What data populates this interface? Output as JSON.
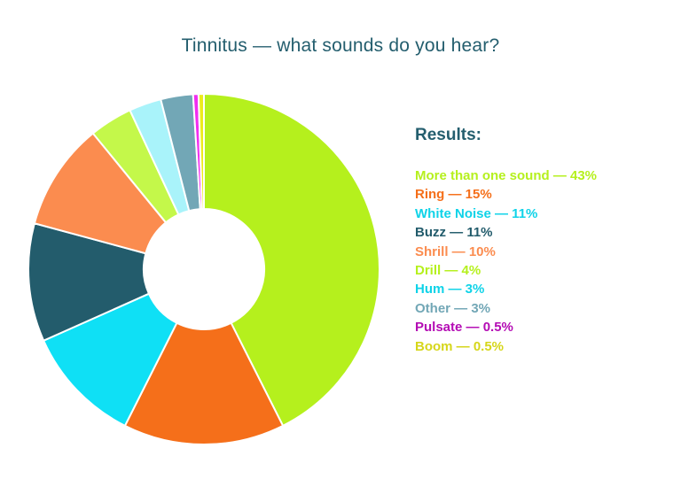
{
  "chart_data": {
    "type": "donut",
    "title": "Tinnitus — what sounds do you hear?",
    "legend_heading": "Results:",
    "legend_position": "right",
    "slices": [
      {
        "label": "More than one sound — 43%",
        "value": 43,
        "color": "#b5f01d"
      },
      {
        "label": "Ring — 15%",
        "value": 15,
        "color": "#f56f1a"
      },
      {
        "label": "White Noise — 11%",
        "value": 11,
        "color": "#0fe0f5"
      },
      {
        "label": "Buzz — 11%",
        "value": 11,
        "color": "#235c6c"
      },
      {
        "label": "Shrill — 10%",
        "value": 10,
        "color": "#fb8c4f"
      },
      {
        "label": "Drill — 4%",
        "value": 4,
        "color": "#c4f84a"
      },
      {
        "label": "Hum — 3%",
        "value": 3,
        "color": "#a9f3fa"
      },
      {
        "label": "Other — 3%",
        "value": 3,
        "color": "#72a7b6"
      },
      {
        "label": "Pulsate — 0.5%",
        "value": 0.5,
        "color": "#f02df0"
      },
      {
        "label": "Boom — 0.5%",
        "value": 0.5,
        "color": "#ecec1c"
      }
    ],
    "legend_colors": [
      "#b5f01d",
      "#f56f1a",
      "#0fd3e8",
      "#235c6c",
      "#fb8c4f",
      "#b5f01d",
      "#0fd3e8",
      "#72a7b6",
      "#b40cb4",
      "#d6d61a"
    ]
  }
}
